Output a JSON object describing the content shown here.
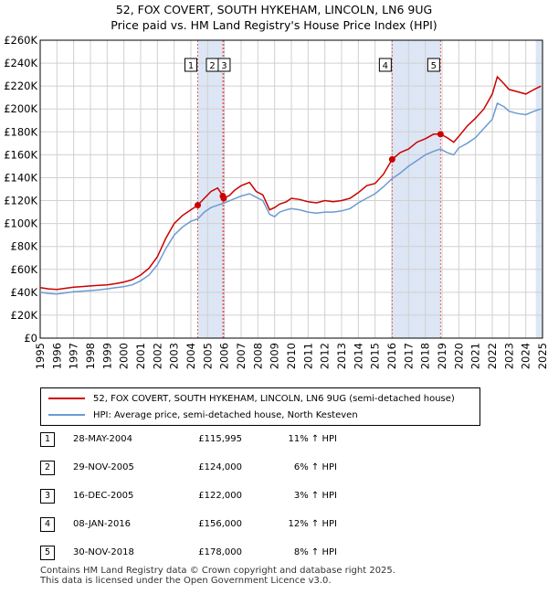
{
  "title": "52, FOX COVERT, SOUTH HYKEHAM, LINCOLN, LN6 9UG",
  "subtitle": "Price paid vs. HM Land Registry's House Price Index (HPI)",
  "colors": {
    "property": "#cc0000",
    "hpi": "#6b9bd2",
    "shade": "#dde6f5",
    "marker_line": "#e06060",
    "grid": "#d0d0d0"
  },
  "legend": {
    "property_label": "52, FOX COVERT, SOUTH HYKEHAM, LINCOLN, LN6 9UG (semi-detached house)",
    "hpi_label": "HPI: Average price, semi-detached house, North Kesteven"
  },
  "transactions": [
    {
      "num": "1",
      "date": "28-MAY-2004",
      "price": "£115,995",
      "hpi": "11% ↑ HPI",
      "x": 2004.41,
      "y": 115995
    },
    {
      "num": "2",
      "date": "29-NOV-2005",
      "price": "£124,000",
      "hpi": "6% ↑ HPI",
      "x": 2005.91,
      "y": 124000
    },
    {
      "num": "3",
      "date": "16-DEC-2005",
      "price": "£122,000",
      "hpi": "3% ↑ HPI",
      "x": 2005.96,
      "y": 122000
    },
    {
      "num": "4",
      "date": "08-JAN-2016",
      "price": "£156,000",
      "hpi": "12% ↑ HPI",
      "x": 2016.02,
      "y": 156000
    },
    {
      "num": "5",
      "date": "30-NOV-2018",
      "price": "£178,000",
      "hpi": "8% ↑ HPI",
      "x": 2018.91,
      "y": 178000
    }
  ],
  "footer": {
    "line1": "Contains HM Land Registry data © Crown copyright and database right 2025.",
    "line2": "This data is licensed under the Open Government Licence v3.0."
  },
  "chart_data": {
    "type": "line",
    "xlim": [
      1995,
      2025
    ],
    "ylim": [
      0,
      260000
    ],
    "x_ticks": [
      "1995",
      "1996",
      "1997",
      "1998",
      "1999",
      "2000",
      "2001",
      "2002",
      "2003",
      "2004",
      "2005",
      "2006",
      "2007",
      "2008",
      "2009",
      "2010",
      "2011",
      "2012",
      "2013",
      "2014",
      "2015",
      "2016",
      "2017",
      "2018",
      "2019",
      "2020",
      "2021",
      "2022",
      "2023",
      "2024",
      "2025"
    ],
    "y_ticks": [
      {
        "label": "£0",
        "value": 0
      },
      {
        "label": "£20K",
        "value": 20000
      },
      {
        "label": "£40K",
        "value": 40000
      },
      {
        "label": "£60K",
        "value": 60000
      },
      {
        "label": "£80K",
        "value": 80000
      },
      {
        "label": "£100K",
        "value": 100000
      },
      {
        "label": "£120K",
        "value": 120000
      },
      {
        "label": "£140K",
        "value": 140000
      },
      {
        "label": "£160K",
        "value": 160000
      },
      {
        "label": "£180K",
        "value": 180000
      },
      {
        "label": "£200K",
        "value": 200000
      },
      {
        "label": "£220K",
        "value": 220000
      },
      {
        "label": "£240K",
        "value": 240000
      },
      {
        "label": "£260K",
        "value": 260000
      }
    ],
    "grid": true,
    "shaded_ranges": [
      [
        2004.41,
        2005.96
      ],
      [
        2016.02,
        2018.91
      ],
      [
        2024.6,
        2025.0
      ]
    ],
    "series": [
      {
        "name": "52, FOX COVERT, SOUTH HYKEHAM, LINCOLN, LN6 9UG (semi-detached house)",
        "x": [
          1995.0,
          1995.5,
          1996.0,
          1996.5,
          1997.0,
          1997.5,
          1998.0,
          1998.5,
          1999.0,
          1999.5,
          2000.0,
          2000.5,
          2001.0,
          2001.5,
          2002.0,
          2002.5,
          2003.0,
          2003.5,
          2004.0,
          2004.41,
          2004.8,
          2005.2,
          2005.6,
          2005.91,
          2005.96,
          2006.3,
          2006.6,
          2007.0,
          2007.5,
          2007.9,
          2008.3,
          2008.7,
          2009.0,
          2009.3,
          2009.7,
          2010.0,
          2010.5,
          2011.0,
          2011.5,
          2012.0,
          2012.5,
          2013.0,
          2013.5,
          2014.0,
          2014.5,
          2015.0,
          2015.5,
          2016.02,
          2016.5,
          2017.0,
          2017.5,
          2018.0,
          2018.5,
          2018.91,
          2019.3,
          2019.7,
          2020.0,
          2020.5,
          2021.0,
          2021.5,
          2022.0,
          2022.3,
          2022.7,
          2023.0,
          2023.5,
          2024.0,
          2024.5,
          2024.9
        ],
        "y": [
          44000,
          43000,
          42500,
          43500,
          44500,
          45000,
          45500,
          46000,
          46500,
          47500,
          49000,
          51000,
          55000,
          61000,
          71000,
          87000,
          100000,
          107000,
          112000,
          115995,
          122000,
          128000,
          131000,
          124000,
          122000,
          124500,
          129000,
          133000,
          136000,
          128000,
          125000,
          112000,
          114000,
          117000,
          119000,
          122000,
          121000,
          119000,
          118000,
          120000,
          119000,
          120000,
          122000,
          127000,
          133000,
          135000,
          143000,
          156000,
          162000,
          165000,
          171000,
          174000,
          178000,
          178000,
          175000,
          171000,
          176000,
          185000,
          192000,
          200000,
          213000,
          228000,
          222000,
          217000,
          215000,
          213000,
          217000,
          220000
        ]
      },
      {
        "name": "HPI: Average price, semi-detached house, North Kesteven",
        "x": [
          1995.0,
          1995.5,
          1996.0,
          1996.5,
          1997.0,
          1997.5,
          1998.0,
          1998.5,
          1999.0,
          1999.5,
          2000.0,
          2000.5,
          2001.0,
          2001.5,
          2002.0,
          2002.5,
          2003.0,
          2003.5,
          2004.0,
          2004.41,
          2004.8,
          2005.2,
          2005.6,
          2006.0,
          2006.5,
          2007.0,
          2007.5,
          2007.9,
          2008.3,
          2008.7,
          2009.0,
          2009.3,
          2009.7,
          2010.0,
          2010.5,
          2011.0,
          2011.5,
          2012.0,
          2012.5,
          2013.0,
          2013.5,
          2014.0,
          2014.5,
          2015.0,
          2015.5,
          2016.0,
          2016.5,
          2017.0,
          2017.5,
          2018.0,
          2018.5,
          2018.9,
          2019.3,
          2019.7,
          2020.0,
          2020.5,
          2021.0,
          2021.5,
          2022.0,
          2022.3,
          2022.7,
          2023.0,
          2023.5,
          2024.0,
          2024.5,
          2024.9
        ],
        "y": [
          40000,
          39000,
          38500,
          39500,
          40500,
          41000,
          41500,
          42000,
          43000,
          44000,
          45000,
          46500,
          50000,
          55000,
          64000,
          78000,
          90000,
          97000,
          102000,
          104000,
          110000,
          114000,
          116000,
          118000,
          121000,
          124000,
          126000,
          123000,
          120000,
          108000,
          106000,
          110000,
          112000,
          113000,
          112000,
          110000,
          109000,
          110000,
          110000,
          111000,
          113000,
          118000,
          122000,
          126000,
          132000,
          139000,
          144000,
          150000,
          155000,
          160000,
          163000,
          165000,
          162000,
          160000,
          166000,
          170000,
          175000,
          183000,
          191000,
          205000,
          202000,
          198000,
          196000,
          195000,
          198000,
          200000
        ]
      }
    ]
  }
}
